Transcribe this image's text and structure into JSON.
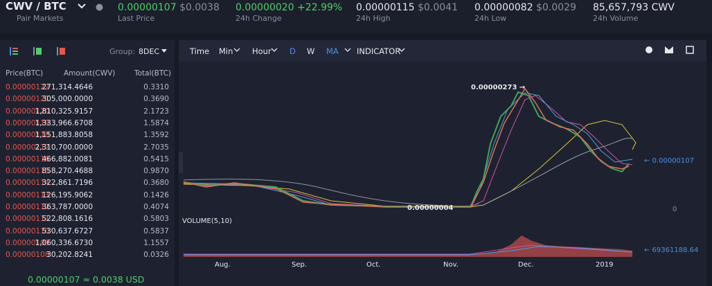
{
  "header": {
    "pair": "CWV / BTC",
    "pair_sub": "Pair Markets",
    "stats": [
      {
        "value": "0.00000107",
        "sub_value": "$0.0038",
        "label": "Last Price"
      },
      {
        "value": "0.00000020",
        "sub_value": "+22.99%",
        "label": "24h Change"
      },
      {
        "value": "0.00000115",
        "sub_value": "$0.0041",
        "label": "24h High"
      },
      {
        "value": "0.00000082",
        "sub_value": "$0.0029",
        "label": "24h Low"
      },
      {
        "value": "85,657,793 CWV",
        "label": "24h Volume"
      }
    ]
  },
  "order_book": {
    "group_label": "Group:",
    "group_value": "8DEC",
    "columns": [
      "Price(BTC)",
      "Amount(CWV)",
      "Total(BTC)"
    ],
    "rows": [
      [
        "0.00000122",
        "271,314.4646",
        "0.3310"
      ],
      [
        "0.00000121",
        "305,000.0000",
        "0.3690"
      ],
      [
        "0.00000120",
        "1,810,325.9157",
        "2.1723"
      ],
      [
        "0.00000119",
        "1,333,966.6708",
        "1.5874"
      ],
      [
        "0.00000118",
        "1,151,883.8058",
        "1.3592"
      ],
      [
        "0.00000117",
        "2,310,700.0000",
        "2.7035"
      ],
      [
        "0.00000116",
        "466,882.0081",
        "0.5415"
      ],
      [
        "0.00000115",
        "858,270.4688",
        "0.9870"
      ],
      [
        "0.00000114",
        "322,861.7196",
        "0.3680"
      ],
      [
        "0.00000113",
        "126,195.9062",
        "0.1426"
      ],
      [
        "0.00000112",
        "363,787.0000",
        "0.4074"
      ],
      [
        "0.00000111",
        "522,808.1616",
        "0.5803"
      ],
      [
        "0.00000110",
        "530,637.6727",
        "0.5837"
      ],
      [
        "0.00000109",
        "1,060,336.6730",
        "1.1557"
      ],
      [
        "0.00000108",
        "30,202.8241",
        "0.0326"
      ]
    ],
    "last_price": "0.00000107 ≈ 0.0038 USD"
  },
  "chart": {
    "toolbar": [
      "Time",
      "Min",
      "Hour",
      "D",
      "W",
      "MA",
      "INDICATOR"
    ],
    "high_label": "0.00000273 →",
    "low_label": "0.00000004",
    "last_label": "← 0.00000107",
    "zero_label": "0",
    "volume_title": "VOLUME(5,10)",
    "volume_label": "← 69361188.64",
    "x_labels": [
      "Aug.",
      "Sep.",
      "Oct.",
      "Nov.",
      "Dec.",
      "2019"
    ]
  }
}
